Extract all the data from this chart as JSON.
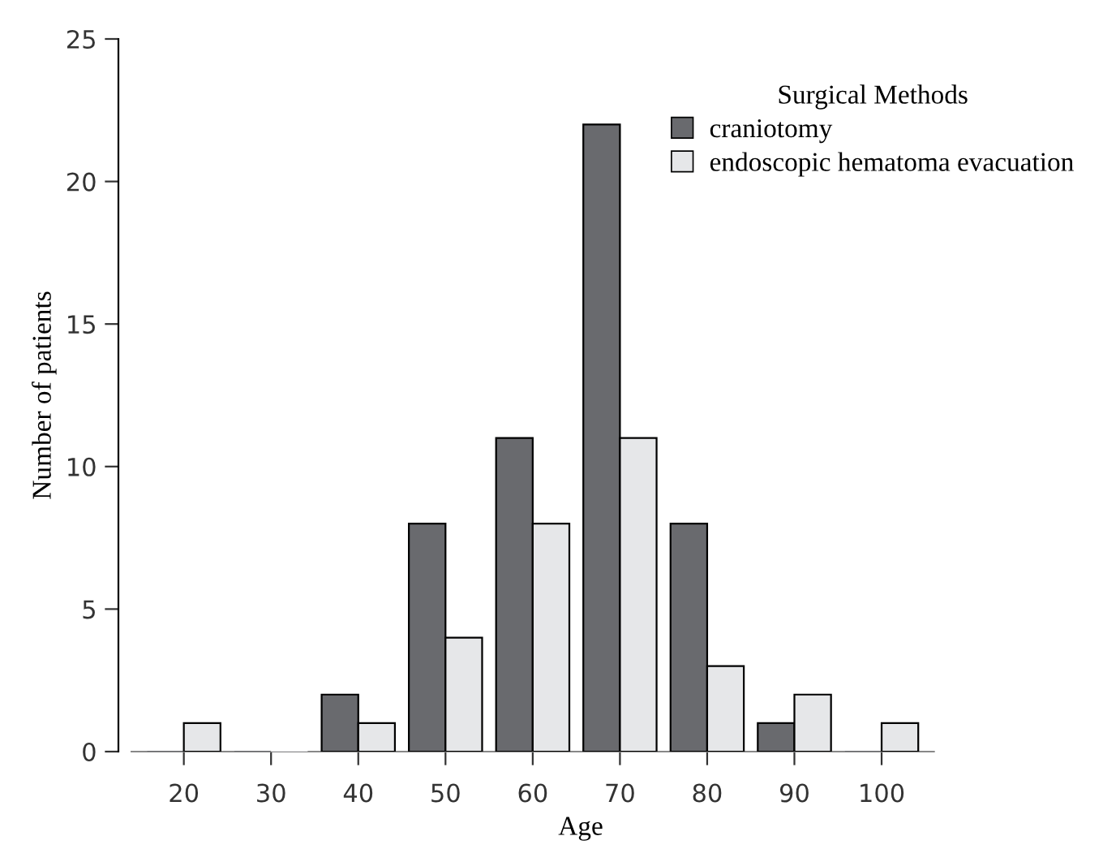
{
  "chart_data": {
    "type": "bar",
    "xlabel": "Age",
    "ylabel": "Number of patients",
    "legend_title": "Surgical Methods",
    "categories": [
      "20",
      "30",
      "40",
      "50",
      "60",
      "70",
      "80",
      "90",
      "100"
    ],
    "series": [
      {
        "name": "craniotomy",
        "color": "#696a6e",
        "values": [
          0,
          0,
          2,
          8,
          11,
          22,
          8,
          1,
          0
        ]
      },
      {
        "name": "endoscopic hematoma evacuation",
        "color": "#e6e7e9",
        "values": [
          1,
          0,
          1,
          4,
          8,
          11,
          3,
          2,
          1
        ]
      }
    ],
    "ylim": [
      0,
      25
    ],
    "yticks": [
      0,
      5,
      10,
      15,
      20,
      25
    ],
    "grid": false,
    "legend": "top right"
  }
}
